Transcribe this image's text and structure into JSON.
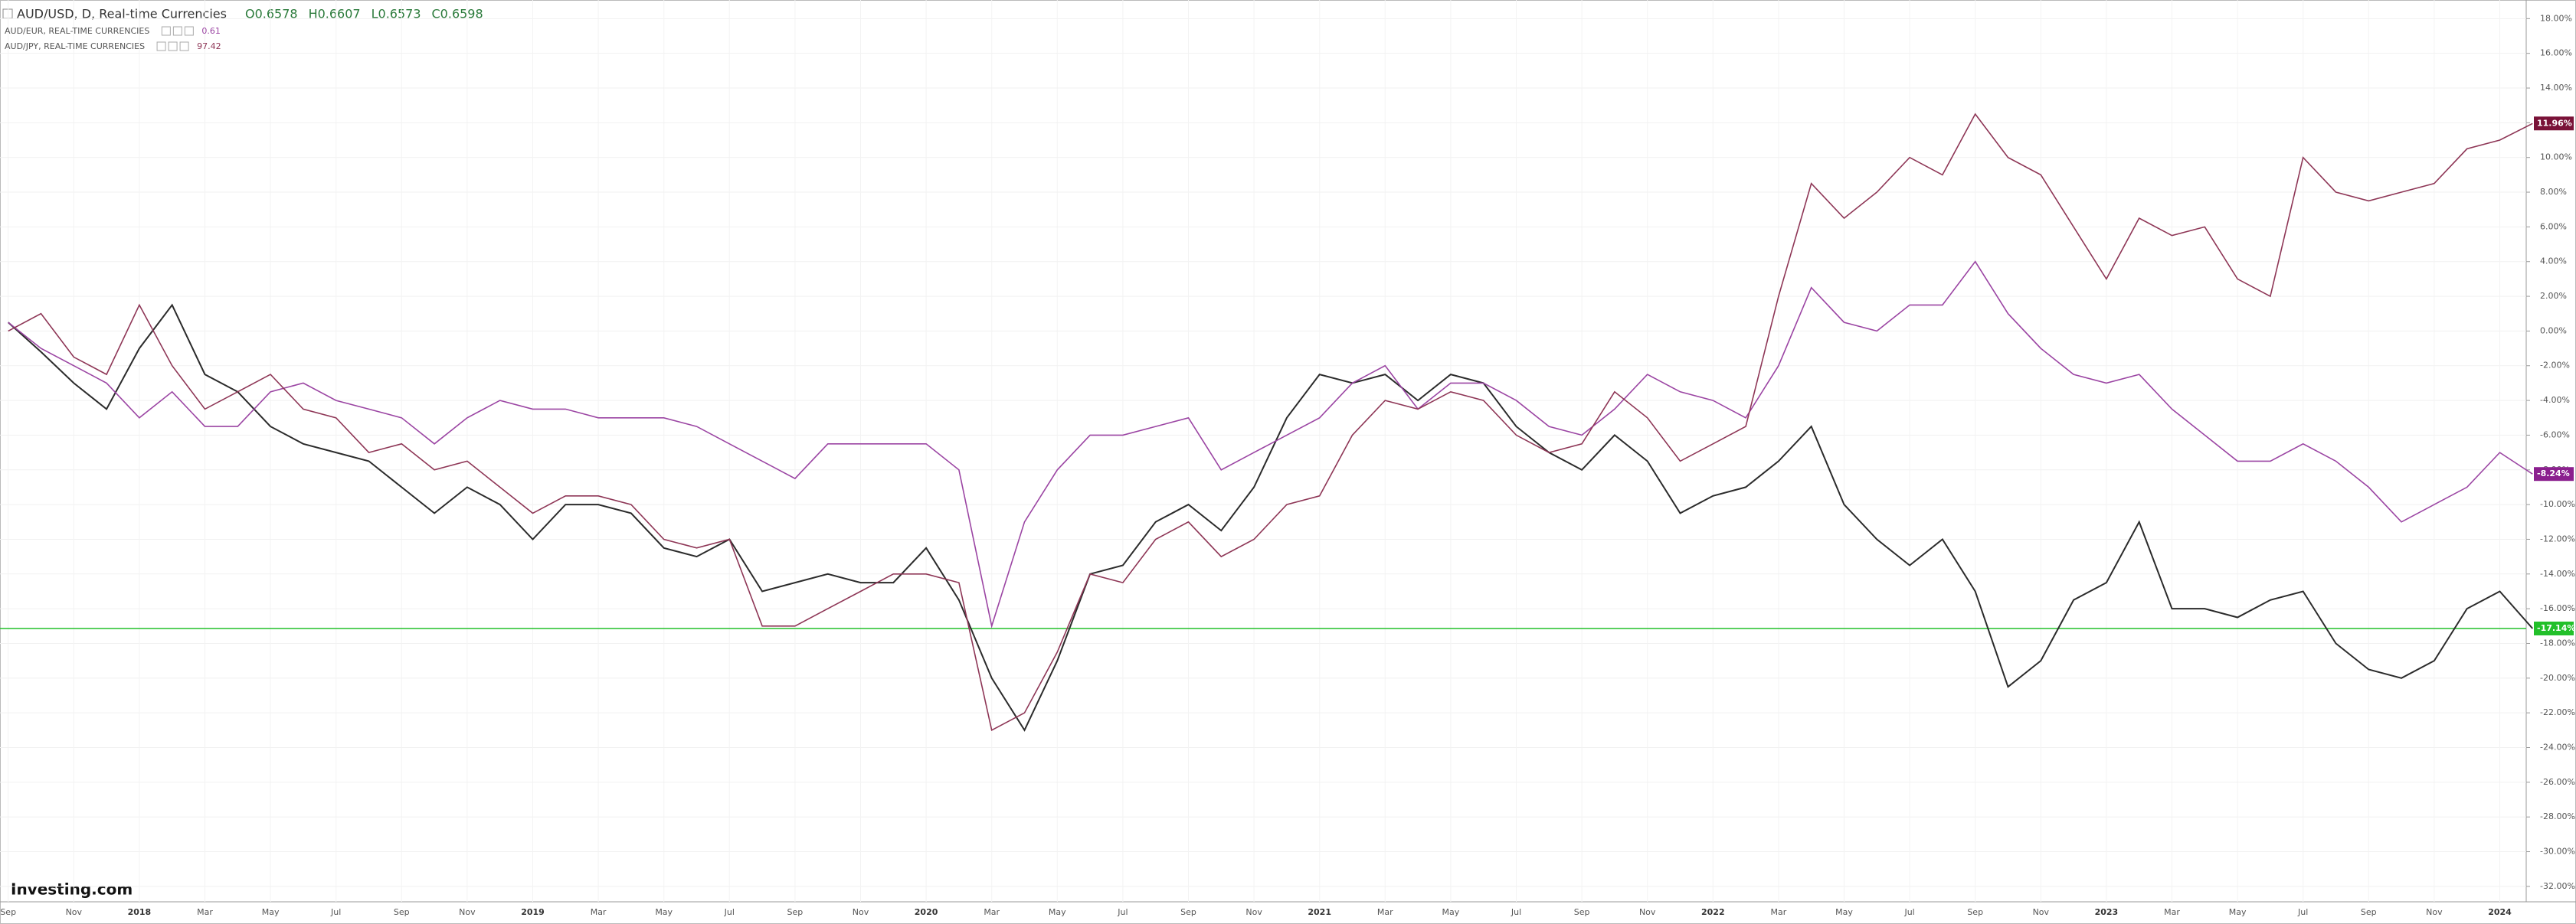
{
  "chart_data": {
    "type": "line",
    "title": "AUD/USD, D, Real-time Currencies",
    "ohlc": [
      "O0.6578",
      "H0.6607",
      "L0.6573",
      "C0.6598"
    ],
    "brand": "Investing.com",
    "categories": [
      "Sep",
      null,
      "Nov",
      null,
      "2018",
      null,
      "Mar",
      null,
      "May",
      null,
      "Jul",
      null,
      "Sep",
      null,
      "Nov",
      null,
      "2019",
      null,
      "Mar",
      null,
      "May",
      null,
      "Jul",
      null,
      "Sep",
      null,
      "Nov",
      null,
      "2020",
      null,
      "Mar",
      null,
      "May",
      null,
      "Jul",
      null,
      "Sep",
      null,
      "Nov",
      null,
      "2021",
      null,
      "Mar",
      null,
      "May",
      null,
      "Jul",
      null,
      "Sep",
      null,
      "Nov",
      null,
      "2022",
      null,
      "Mar",
      null,
      "May",
      null,
      "Jul",
      null,
      "Sep",
      null,
      "Nov",
      null,
      "2023",
      null,
      "Mar",
      null,
      "May",
      null,
      "Jul",
      null,
      "Sep",
      null,
      "Nov",
      null,
      "2024",
      null
    ],
    "series": [
      {
        "color": "#2b2b2b",
        "price_line_color": "#22c02a",
        "values": [
          0.5,
          -1.2,
          -3,
          -4.5,
          -1,
          1.5,
          -2.5,
          -3.5,
          -5.5,
          -6.5,
          -7,
          -7.5,
          -9,
          -10.5,
          -9,
          -10,
          -12,
          -10,
          -10,
          -10.5,
          -12.5,
          -13,
          -12,
          -15,
          -14.5,
          -14,
          -14.5,
          -14.5,
          -12.5,
          -15.5,
          -20,
          -23,
          -19,
          -14,
          -13.5,
          -11,
          -10,
          -11.5,
          -9,
          -5,
          -2.5,
          -3,
          -2.5,
          -4,
          -2.5,
          -3,
          -5.5,
          -7,
          -8,
          -6,
          -7.5,
          -10.5,
          -9.5,
          -9,
          -7.5,
          -5.5,
          -10,
          -12,
          -13.5,
          -12,
          -15,
          -20.5,
          -19,
          -15.5,
          -14.5,
          -11,
          -16,
          -16,
          -16.5,
          -15.5,
          -15,
          -18,
          -19.5,
          -20,
          -19,
          -16,
          -15,
          -17.14
        ],
        "value_labels": [
          null,
          null,
          null,
          null,
          null,
          null,
          null,
          null,
          null,
          null,
          null,
          null,
          null,
          null,
          null,
          null,
          null,
          null,
          null,
          null,
          null,
          null,
          null,
          null,
          null,
          null,
          null,
          null,
          null,
          null,
          null,
          null,
          null,
          null,
          null,
          null,
          null,
          null,
          null,
          null,
          null,
          null,
          null,
          null,
          null,
          null,
          null,
          null,
          null,
          null,
          null,
          null,
          null,
          null,
          null,
          null,
          null,
          null,
          null,
          null,
          null,
          null,
          null,
          null,
          null,
          null,
          null,
          null,
          null,
          null,
          null,
          null,
          null,
          null,
          null,
          null,
          null,
          "-17.14%"
        ]
      },
      {
        "name": "AUD/EUR, REAL-TIME CURRENCIES",
        "quote": 0.61,
        "color": "#9b45a3",
        "badge_color": "#8b1f8e",
        "values": [
          0.5,
          -1,
          -2,
          -3,
          -5,
          -3.5,
          -5.5,
          -5.5,
          -3.5,
          -3,
          -4,
          -4.5,
          -5,
          -6.5,
          -5,
          -4,
          -4.5,
          -4.5,
          -5,
          -5,
          -5,
          -5.5,
          -6.5,
          -7.5,
          -8.5,
          -6.5,
          -6.5,
          -6.5,
          -6.5,
          -8,
          -17,
          -11,
          -8,
          -6,
          -6,
          -5.5,
          -5,
          -8,
          -7,
          -6,
          -5,
          -3,
          -2,
          -4.5,
          -3,
          -3,
          -4,
          -5.5,
          -6,
          -4.5,
          -2.5,
          -3.5,
          -4,
          -5,
          -2,
          2.5,
          0.5,
          0,
          1.5,
          1.5,
          4,
          1,
          -1,
          -2.5,
          -3,
          -2.5,
          -4.5,
          -6,
          -7.5,
          -7.5,
          -6.5,
          -7.5,
          -9,
          -11,
          -10,
          -9,
          -7,
          -8.24
        ],
        "value_labels": [
          null,
          null,
          null,
          null,
          null,
          null,
          null,
          null,
          null,
          null,
          null,
          null,
          null,
          null,
          null,
          null,
          null,
          null,
          null,
          null,
          null,
          null,
          null,
          null,
          null,
          null,
          null,
          null,
          null,
          null,
          null,
          null,
          null,
          null,
          null,
          null,
          null,
          null,
          null,
          null,
          null,
          null,
          null,
          null,
          null,
          null,
          null,
          null,
          null,
          null,
          null,
          null,
          null,
          null,
          null,
          null,
          null,
          null,
          null,
          null,
          null,
          null,
          null,
          null,
          null,
          null,
          null,
          null,
          null,
          null,
          null,
          null,
          null,
          null,
          null,
          null,
          null,
          "-8.24%"
        ]
      },
      {
        "name": "AUD/JPY, REAL-TIME CURRENCIES",
        "quote": 97.42,
        "color": "#8e3656",
        "badge_color": "#7a1238",
        "values": [
          0,
          1,
          -1.5,
          -2.5,
          1.5,
          -2,
          -4.5,
          -3.5,
          -2.5,
          -4.5,
          -5,
          -7,
          -6.5,
          -8,
          -7.5,
          -9,
          -10.5,
          -9.5,
          -9.5,
          -10,
          -12,
          -12.5,
          -12,
          -17,
          -17,
          -16,
          -15,
          -14,
          -14,
          -14.5,
          -23,
          -22,
          -18.5,
          -14,
          -14.5,
          -12,
          -11,
          -13,
          -12,
          -10,
          -9.5,
          -6,
          -4,
          -4.5,
          -3.5,
          -4,
          -6,
          -7,
          -6.5,
          -3.5,
          -5,
          -7.5,
          -6.5,
          -5.5,
          2,
          8.5,
          6.5,
          8,
          10,
          9,
          12.5,
          10,
          9,
          6,
          3,
          6.5,
          5.5,
          6,
          3,
          2,
          10,
          8,
          7.5,
          8,
          8.5,
          10.5,
          11,
          11.96
        ],
        "value_labels": [
          null,
          null,
          null,
          null,
          null,
          null,
          null,
          null,
          null,
          null,
          null,
          null,
          null,
          null,
          null,
          null,
          null,
          null,
          null,
          null,
          null,
          null,
          null,
          null,
          null,
          null,
          null,
          null,
          null,
          null,
          null,
          null,
          null,
          null,
          null,
          null,
          null,
          null,
          null,
          null,
          null,
          null,
          null,
          null,
          null,
          null,
          null,
          null,
          null,
          null,
          null,
          null,
          null,
          null,
          null,
          null,
          null,
          null,
          null,
          null,
          null,
          null,
          null,
          null,
          null,
          null,
          null,
          null,
          null,
          null,
          null,
          null,
          null,
          null,
          null,
          null,
          null,
          "11.96%"
        ]
      }
    ],
    "ylim": [
      -32.8,
      18.5
    ],
    "yticks": [
      {
        "value": 18,
        "label": "18.00%"
      },
      {
        "value": 16,
        "label": "16.00%"
      },
      {
        "value": 14,
        "label": "14.00%"
      },
      {
        "value": 12,
        "label": "12.00%"
      },
      {
        "value": 10,
        "label": "10.00%"
      },
      {
        "value": 8,
        "label": "8.00%"
      },
      {
        "value": 6,
        "label": "6.00%"
      },
      {
        "value": 4,
        "label": "4.00%"
      },
      {
        "value": 2,
        "label": "2.00%"
      },
      {
        "value": 0,
        "label": "0.00%"
      },
      {
        "value": -2,
        "label": "-2.00%"
      },
      {
        "value": -4,
        "label": "-4.00%"
      },
      {
        "value": -6,
        "label": "-6.00%"
      },
      {
        "value": -8,
        "label": "-8.00%"
      },
      {
        "value": -10,
        "label": "-10.00%"
      },
      {
        "value": -12,
        "label": "-12.00%"
      },
      {
        "value": -14,
        "label": "-14.00%"
      },
      {
        "value": -16,
        "label": "-16.00%"
      },
      {
        "value": -18,
        "label": "-18.00%"
      },
      {
        "value": -20,
        "label": "-20.00%"
      },
      {
        "value": -22,
        "label": "-22.00%"
      },
      {
        "value": -24,
        "label": "-24.00%"
      },
      {
        "value": -26,
        "label": "-26.00%"
      },
      {
        "value": -28,
        "label": "-28.00%"
      },
      {
        "value": -30,
        "label": "-30.00%"
      },
      {
        "value": -32,
        "label": "-32.00%"
      }
    ],
    "grid": true
  }
}
